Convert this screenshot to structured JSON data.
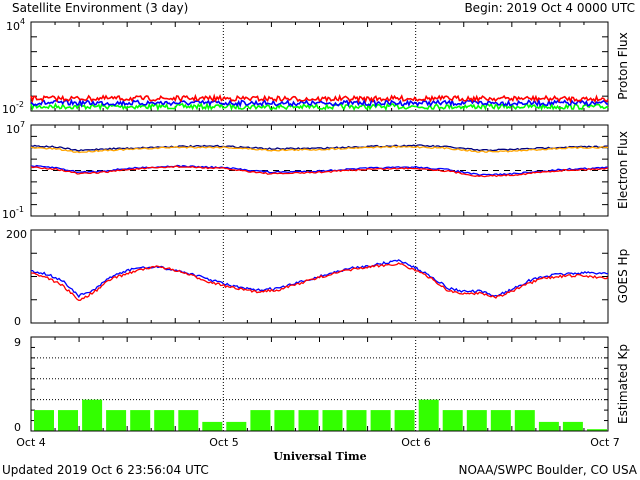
{
  "header": {
    "title": "Satellite Environment (3 day)",
    "begin": "Begin:  2019 Oct 4 0000 UTC"
  },
  "footer": {
    "updated": "Updated 2019 Oct  6 23:56:04 UTC",
    "credit": "NOAA/SWPC Boulder, CO USA"
  },
  "xaxis": {
    "label": "Universal Time",
    "ticks": [
      "Oct 4",
      "Oct 5",
      "Oct 6",
      "Oct 7"
    ]
  },
  "colors": {
    "red": "#ff0000",
    "blue": "#0000ff",
    "green": "#00ff00",
    "orange": "#ffa500",
    "navy": "#000080",
    "kp_bar": "#33ff00"
  },
  "chart_data": [
    {
      "type": "line",
      "panel": "proton",
      "ylabel": "Proton Flux",
      "yscale": "log",
      "ylim": [
        0.01,
        10000
      ],
      "ytick_labels": [
        {
          "base": "10",
          "exp": "4"
        },
        {
          "base": "10",
          "exp": "-2"
        }
      ],
      "threshold": 10,
      "x_unit": "hours since Oct 4 0000 UTC",
      "x": [
        0,
        12,
        24,
        36,
        48,
        60,
        72
      ],
      "series": [
        {
          "color": "red",
          "values": [
            0.07,
            0.07,
            0.07,
            0.065,
            0.07,
            0.07,
            0.065
          ]
        },
        {
          "color": "blue",
          "values": [
            0.035,
            0.035,
            0.035,
            0.033,
            0.035,
            0.035,
            0.033
          ]
        },
        {
          "color": "green",
          "values": [
            0.02,
            0.02,
            0.02,
            0.019,
            0.02,
            0.02,
            0.019
          ]
        }
      ]
    },
    {
      "type": "line",
      "panel": "electron",
      "ylabel": "Electron Flux",
      "yscale": "log",
      "ylim": [
        0.1,
        10000000
      ],
      "ytick_labels": [
        {
          "base": "10",
          "exp": "7"
        },
        {
          "base": "10",
          "exp": "-1"
        }
      ],
      "threshold": 1000,
      "x_unit": "hours since Oct 4 0000 UTC",
      "x": [
        0,
        3,
        6,
        9,
        12,
        18,
        24,
        30,
        36,
        42,
        48,
        52,
        56,
        60,
        66,
        72
      ],
      "series": [
        {
          "color": "navy",
          "values": [
            150000,
            120000,
            55000,
            80000,
            90000,
            130000,
            140000,
            80000,
            90000,
            130000,
            160000,
            120000,
            60000,
            70000,
            110000,
            130000
          ]
        },
        {
          "color": "orange",
          "values": [
            100000,
            80000,
            40000,
            60000,
            70000,
            110000,
            110000,
            60000,
            70000,
            110000,
            120000,
            90000,
            45000,
            50000,
            90000,
            110000
          ]
        },
        {
          "color": "blue",
          "values": [
            2500,
            1800,
            700,
            900,
            1500,
            2500,
            1800,
            700,
            900,
            1600,
            2000,
            1200,
            400,
            500,
            1200,
            1800
          ]
        },
        {
          "color": "red",
          "values": [
            2000,
            1400,
            500,
            700,
            1200,
            2200,
            1500,
            500,
            700,
            1300,
            1600,
            900,
            300,
            400,
            1000,
            1500
          ]
        }
      ]
    },
    {
      "type": "line",
      "panel": "goes_hp",
      "ylabel": "GOES Hp",
      "ylim": [
        0,
        200
      ],
      "ytick_labels": [
        "200",
        "0"
      ],
      "x_unit": "hours since Oct 4 0000 UTC",
      "x": [
        0,
        2,
        4,
        6,
        8,
        10,
        13,
        16,
        19,
        22,
        25,
        28,
        31,
        34,
        37,
        40,
        43,
        46,
        48,
        50,
        52,
        54,
        56,
        58,
        60,
        62,
        64,
        66,
        68,
        70,
        72
      ],
      "series": [
        {
          "color": "blue",
          "values": [
            113,
            105,
            90,
            58,
            72,
            100,
            118,
            120,
            110,
            95,
            80,
            70,
            75,
            90,
            105,
            118,
            125,
            135,
            118,
            100,
            75,
            68,
            68,
            58,
            72,
            90,
            100,
            105,
            107,
            108,
            107
          ]
        },
        {
          "color": "red",
          "values": [
            108,
            98,
            80,
            48,
            68,
            95,
            112,
            122,
            108,
            90,
            76,
            67,
            72,
            88,
            103,
            115,
            122,
            128,
            113,
            95,
            70,
            62,
            65,
            55,
            68,
            84,
            96,
            100,
            102,
            100,
            97
          ]
        }
      ]
    },
    {
      "type": "bar",
      "panel": "kp",
      "ylabel": "Estimated Kp",
      "ylim": [
        0,
        9
      ],
      "ytick_labels": [
        "9",
        "0"
      ],
      "x_unit": "3-hour intervals from Oct 4 0000 UTC",
      "values": [
        2,
        2,
        3,
        2,
        2,
        2,
        2,
        0.87,
        0.87,
        2,
        2,
        2,
        2,
        2,
        2,
        2,
        3,
        2,
        2,
        2,
        2,
        0.87,
        0.87,
        0.17
      ]
    }
  ]
}
